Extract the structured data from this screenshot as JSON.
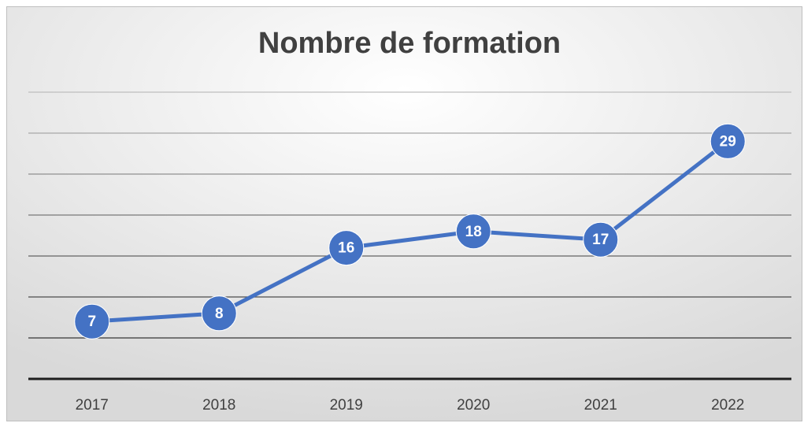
{
  "chart_data": {
    "type": "line",
    "title": "Nombre de formation",
    "categories": [
      "2017",
      "2018",
      "2019",
      "2020",
      "2021",
      "2022"
    ],
    "series": [
      {
        "name": "Nombre de formation",
        "color": "#4472c4",
        "values": [
          7,
          8,
          16,
          18,
          17,
          29
        ]
      }
    ],
    "ylim": [
      0,
      35
    ],
    "yticks": [
      0,
      5,
      10,
      15,
      20,
      25,
      30,
      35
    ],
    "grid": true
  }
}
